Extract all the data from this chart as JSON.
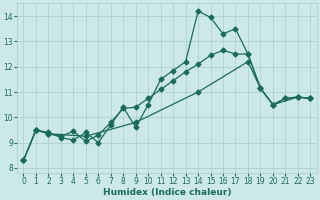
{
  "xlabel": "Humidex (Indice chaleur)",
  "ylabel": "",
  "background_color": "#cce8e8",
  "grid_color": "#aacaca",
  "line_color": "#1a6b5a",
  "xlim": [
    -0.5,
    23.5
  ],
  "ylim": [
    7.8,
    14.5
  ],
  "yticks": [
    8,
    9,
    10,
    11,
    12,
    13,
    14
  ],
  "xticks": [
    0,
    1,
    2,
    3,
    4,
    5,
    6,
    7,
    8,
    9,
    10,
    11,
    12,
    13,
    14,
    15,
    16,
    17,
    18,
    19,
    20,
    21,
    22,
    23
  ],
  "series1": [
    [
      0,
      8.3
    ],
    [
      1,
      9.5
    ],
    [
      2,
      9.4
    ],
    [
      3,
      9.2
    ],
    [
      4,
      9.1
    ],
    [
      5,
      9.4
    ],
    [
      6,
      9.0
    ],
    [
      7,
      9.7
    ],
    [
      8,
      10.4
    ],
    [
      9,
      9.6
    ],
    [
      10,
      10.5
    ],
    [
      11,
      11.5
    ],
    [
      12,
      11.85
    ],
    [
      13,
      12.2
    ],
    [
      14,
      14.2
    ],
    [
      15,
      13.95
    ],
    [
      16,
      13.3
    ],
    [
      17,
      13.5
    ],
    [
      18,
      12.5
    ],
    [
      19,
      11.15
    ],
    [
      20,
      10.5
    ],
    [
      21,
      10.75
    ],
    [
      22,
      10.8
    ],
    [
      23,
      10.75
    ]
  ],
  "series2": [
    [
      0,
      8.3
    ],
    [
      1,
      9.5
    ],
    [
      2,
      9.35
    ],
    [
      3,
      9.25
    ],
    [
      4,
      9.45
    ],
    [
      5,
      9.05
    ],
    [
      6,
      9.3
    ],
    [
      7,
      9.8
    ],
    [
      8,
      10.35
    ],
    [
      9,
      10.4
    ],
    [
      10,
      10.75
    ],
    [
      11,
      11.1
    ],
    [
      12,
      11.45
    ],
    [
      13,
      11.8
    ],
    [
      14,
      12.1
    ],
    [
      15,
      12.45
    ],
    [
      16,
      12.65
    ],
    [
      17,
      12.5
    ],
    [
      18,
      12.5
    ],
    [
      19,
      11.15
    ],
    [
      20,
      10.5
    ],
    [
      21,
      10.75
    ],
    [
      22,
      10.8
    ],
    [
      23,
      10.75
    ]
  ],
  "series3": [
    [
      0,
      8.3
    ],
    [
      1,
      9.5
    ],
    [
      2,
      9.35
    ],
    [
      5,
      9.25
    ],
    [
      9,
      9.8
    ],
    [
      14,
      11.0
    ],
    [
      18,
      12.2
    ],
    [
      19,
      11.15
    ],
    [
      20,
      10.5
    ],
    [
      22,
      10.8
    ],
    [
      23,
      10.75
    ]
  ]
}
